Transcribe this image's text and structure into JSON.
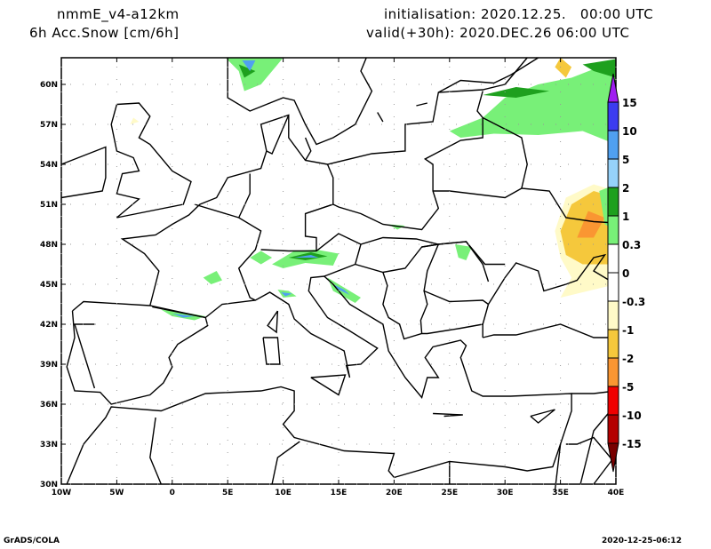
{
  "header": {
    "model": "nmmE_v4-a12km",
    "field": "6h Acc.Snow [cm/6h]",
    "init": "initialisation: 2020.12.25.   00:00 UTC",
    "valid": "valid(+30h): 2020.DEC.26 06:00 UTC"
  },
  "footer": {
    "left": "GrADS/COLA",
    "right": "2020-12-25-06:12"
  },
  "map": {
    "lon_range": [
      -10,
      40
    ],
    "lat_range": [
      30,
      62
    ],
    "lon_ticks": [
      {
        "v": -10,
        "l": "10W"
      },
      {
        "v": -5,
        "l": "5W"
      },
      {
        "v": 0,
        "l": "0"
      },
      {
        "v": 5,
        "l": "5E"
      },
      {
        "v": 10,
        "l": "10E"
      },
      {
        "v": 15,
        "l": "15E"
      },
      {
        "v": 20,
        "l": "20E"
      },
      {
        "v": 25,
        "l": "25E"
      },
      {
        "v": 30,
        "l": "30E"
      },
      {
        "v": 35,
        "l": "35E"
      },
      {
        "v": 40,
        "l": "40E"
      }
    ],
    "lat_ticks": [
      {
        "v": 30,
        "l": "30N"
      },
      {
        "v": 33,
        "l": "33N"
      },
      {
        "v": 36,
        "l": "36N"
      },
      {
        "v": 39,
        "l": "39N"
      },
      {
        "v": 42,
        "l": "42N"
      },
      {
        "v": 45,
        "l": "45N"
      },
      {
        "v": 48,
        "l": "48N"
      },
      {
        "v": 51,
        "l": "51N"
      },
      {
        "v": 54,
        "l": "54N"
      },
      {
        "v": 57,
        "l": "57N"
      },
      {
        "v": 60,
        "l": "60N"
      }
    ]
  },
  "colorbar": {
    "top_color": "#a01ef0",
    "bottom_color": "#780000",
    "segments": [
      "#3c3cf0",
      "#50a0f0",
      "#96d2fa",
      "#1ea01e",
      "#78f078",
      "#ffffff",
      "#ffffff",
      "#fffac8",
      "#f5c83c",
      "#fa9632",
      "#f00000",
      "#b40000"
    ],
    "labels": [
      "15",
      "10",
      "5",
      "2",
      "1",
      "0.3",
      "0",
      "-0.3",
      "-1",
      "-2",
      "-5",
      "-10",
      "-15"
    ]
  }
}
